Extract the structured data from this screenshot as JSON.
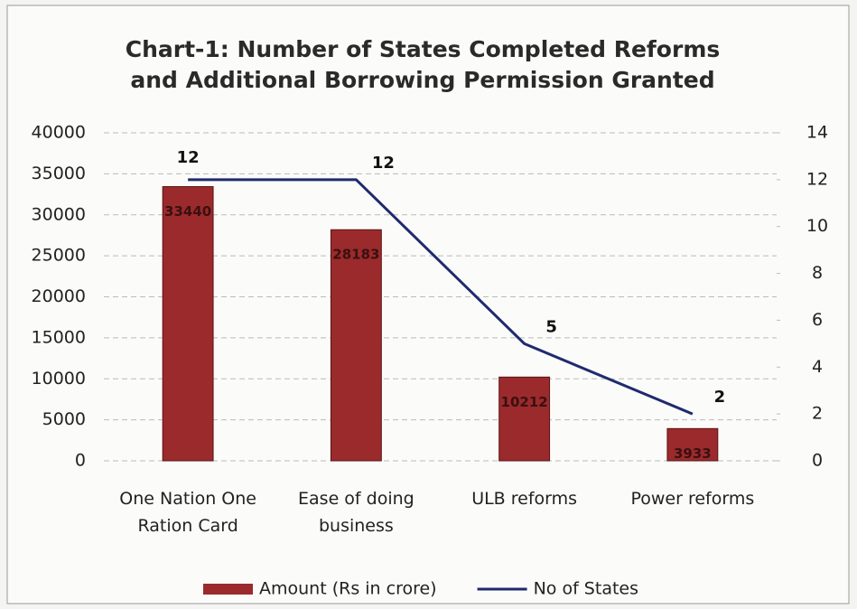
{
  "chart_data": {
    "type": "bar_line",
    "title": "Chart-1: Number of States  Completed Reforms and Additional Borrowing Permission Granted",
    "categories": [
      "One Nation One Ration Card",
      "Ease of doing business",
      "ULB reforms",
      "Power reforms"
    ],
    "series": [
      {
        "name": "Amount (Rs in crore)",
        "type": "bar",
        "color": "#9b2a2c",
        "values": [
          33440,
          28183,
          10212,
          3933
        ]
      },
      {
        "name": "No of States",
        "type": "line",
        "axis": "y2",
        "color": "#1f2a6e",
        "values": [
          12,
          12,
          5,
          2
        ]
      }
    ],
    "ylim": [
      0,
      40000
    ],
    "yticks": [
      0,
      5000,
      10000,
      15000,
      20000,
      25000,
      30000,
      35000,
      40000
    ],
    "y2lim": [
      0,
      14
    ],
    "y2ticks": [
      0,
      2,
      4,
      6,
      8,
      10,
      12,
      14
    ],
    "grid": true,
    "legend": "bottom"
  }
}
